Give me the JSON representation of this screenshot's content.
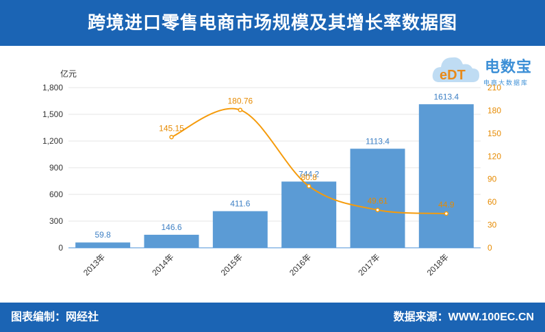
{
  "title": "跨境进口零售电商市场规模及其增长率数据图",
  "footer": {
    "left": "图表编制：网经社",
    "right": "数据来源：WWW.100EC.CN"
  },
  "logo": {
    "brand": "电数宝",
    "slogan": "电商大数据库",
    "mark": "eDT"
  },
  "colors": {
    "header": "#1b64b4",
    "bar": "#5b9bd5",
    "line": "#f59b0b",
    "bar_label": "#3c7fc4",
    "line_label": "#e68a00"
  },
  "chart_data": {
    "type": "bar",
    "categories": [
      "2013年",
      "2014年",
      "2015年",
      "2016年",
      "2017年",
      "2018年"
    ],
    "series": [
      {
        "values": [
          59.8,
          146.6,
          411.6,
          744.2,
          1113.4,
          1613.4
        ],
        "labels": [
          "59.8",
          "146.6",
          "411.6",
          "744.2",
          "1113.4",
          "1613.4"
        ],
        "axis": "left",
        "kind": "bar"
      },
      {
        "values": [
          null,
          145.15,
          180.76,
          80.8,
          49.61,
          44.9
        ],
        "labels": [
          "",
          "145.15",
          "180.76",
          "80.8",
          "49.61",
          "44.9"
        ],
        "axis": "right",
        "kind": "line"
      }
    ],
    "y_left": {
      "label": "亿元",
      "min": 0,
      "max": 1800,
      "ticks": [
        0,
        300,
        600,
        900,
        1200,
        1500,
        1800
      ],
      "tick_labels": [
        "0",
        "300",
        "600",
        "900",
        "1,200",
        "1,500",
        "1,800"
      ]
    },
    "y_right": {
      "min": 0,
      "max": 210,
      "ticks": [
        0,
        30,
        60,
        90,
        120,
        150,
        180,
        210
      ],
      "tick_labels": [
        "0",
        "30",
        "60",
        "90",
        "120",
        "150",
        "180",
        "210"
      ]
    },
    "grid": true,
    "legend": "none"
  }
}
